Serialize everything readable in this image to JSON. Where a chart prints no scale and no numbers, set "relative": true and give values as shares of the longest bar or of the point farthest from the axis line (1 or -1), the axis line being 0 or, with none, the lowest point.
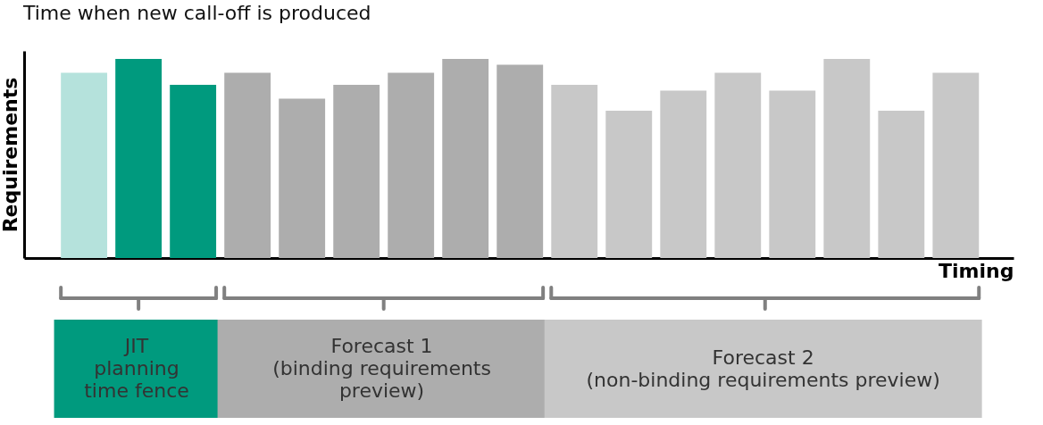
{
  "chart_data": {
    "type": "bar",
    "title": "Time when new call-off is produced",
    "xlabel": "Timing",
    "ylabel": "Requirements",
    "relative": true,
    "categories": [
      null,
      null,
      null,
      null,
      null,
      null,
      null,
      null,
      null,
      null,
      null,
      null,
      null,
      null,
      null,
      null,
      null
    ],
    "values": [
      0.93,
      1,
      0.87,
      0.93,
      0.8,
      0.87,
      0.93,
      1,
      0.97,
      0.87,
      0.74,
      0.84,
      0.93,
      0.84,
      1,
      0.74,
      0.93
    ],
    "colors": [
      "#b5e2dc",
      "#009a7e",
      "#009a7e",
      "#adadad",
      "#adadad",
      "#adadad",
      "#adadad",
      "#adadad",
      "#adadad",
      "#c8c8c8",
      "#c8c8c8",
      "#c8c8c8",
      "#c8c8c8",
      "#c8c8c8",
      "#c8c8c8",
      "#c8c8c8",
      "#c8c8c8"
    ],
    "annotations": [
      "JIT\nplanning\ntime fence",
      "Forecast 1\n(binding requirements\npreview)",
      "Forecast 2\n(non-binding requirements preview)"
    ]
  }
}
